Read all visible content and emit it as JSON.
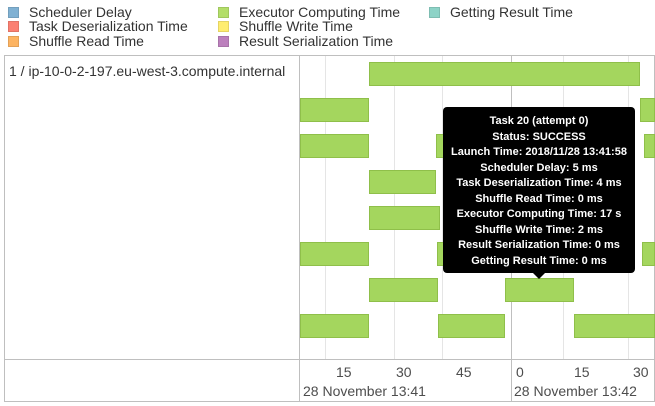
{
  "legend": {
    "items": [
      {
        "label": "Scheduler Delay",
        "color": "#80b1d3"
      },
      {
        "label": "Task Deserialization Time",
        "color": "#fb8072"
      },
      {
        "label": "Shuffle Read Time",
        "color": "#fdb462"
      },
      {
        "label": "Executor Computing Time",
        "color": "#b3de69"
      },
      {
        "label": "Shuffle Write Time",
        "color": "#ffed6f"
      },
      {
        "label": "Result Serialization Time",
        "color": "#bc80bd"
      },
      {
        "label": "Getting Result Time",
        "color": "#8dd3c7"
      }
    ]
  },
  "timeline": {
    "executor_label": "1 / ip-10-0-2-197.eu-west-3.compute.internal",
    "minor_ticks": [
      "15",
      "30",
      "45",
      "0",
      "15",
      "30"
    ],
    "major_labels": [
      "28 November 13:41",
      "28 November 13:42"
    ],
    "task_color": "#a4d65e"
  },
  "tooltip": {
    "lines": [
      "Task 20 (attempt 0)",
      "Status: SUCCESS",
      "Launch Time: 2018/11/28 13:41:58",
      "Scheduler Delay: 5 ms",
      "Task Deserialization Time: 4 ms",
      "Shuffle Read Time: 0 ms",
      "Executor Computing Time: 17 s",
      "Shuffle Write Time: 2 ms",
      "Result Serialization Time: 0 ms",
      "Getting Result Time: 0 ms"
    ]
  }
}
